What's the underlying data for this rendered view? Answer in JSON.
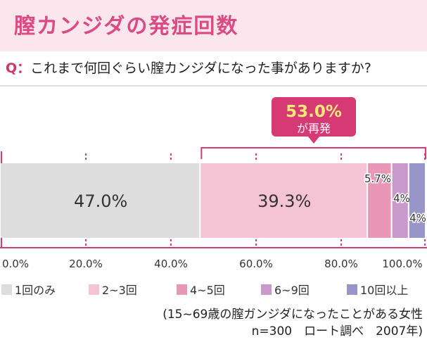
{
  "header": {
    "title": "膣カンジダの発症回数"
  },
  "question": {
    "prefix": "Q：",
    "text": "これまで何回ぐらい膣カンジダになった事がありますか?"
  },
  "callout": {
    "value": "53.0%",
    "label": "が再発"
  },
  "chart_data": {
    "type": "bar",
    "orientation": "horizontal-stacked",
    "title": "膣カンジダの発症回数",
    "series": [
      {
        "name": "1回のみ",
        "value": 47.0,
        "label": "47.0%",
        "color": "#dddddd"
      },
      {
        "name": "2~3回",
        "value": 39.3,
        "label": "39.3%",
        "color": "#f4c3d4"
      },
      {
        "name": "4~5回",
        "value": 5.7,
        "label": "5.7%",
        "color": "#e898b6"
      },
      {
        "name": "6~9回",
        "value": 4,
        "label": "4%",
        "color": "#c999cb"
      },
      {
        "name": "10回以上",
        "value": 4,
        "label": "4%",
        "color": "#9896c8"
      }
    ],
    "xlim": [
      0,
      100
    ],
    "xticks": [
      "0.0%",
      "20.0%",
      "40.0%",
      "60.0%",
      "80.0%",
      "100.0%"
    ],
    "legend": "bottom"
  },
  "footnote": {
    "line1": "(15~69歳の膣ガンジダになったことがある女性",
    "line2": "n=300　ロート調べ　2007年)"
  }
}
